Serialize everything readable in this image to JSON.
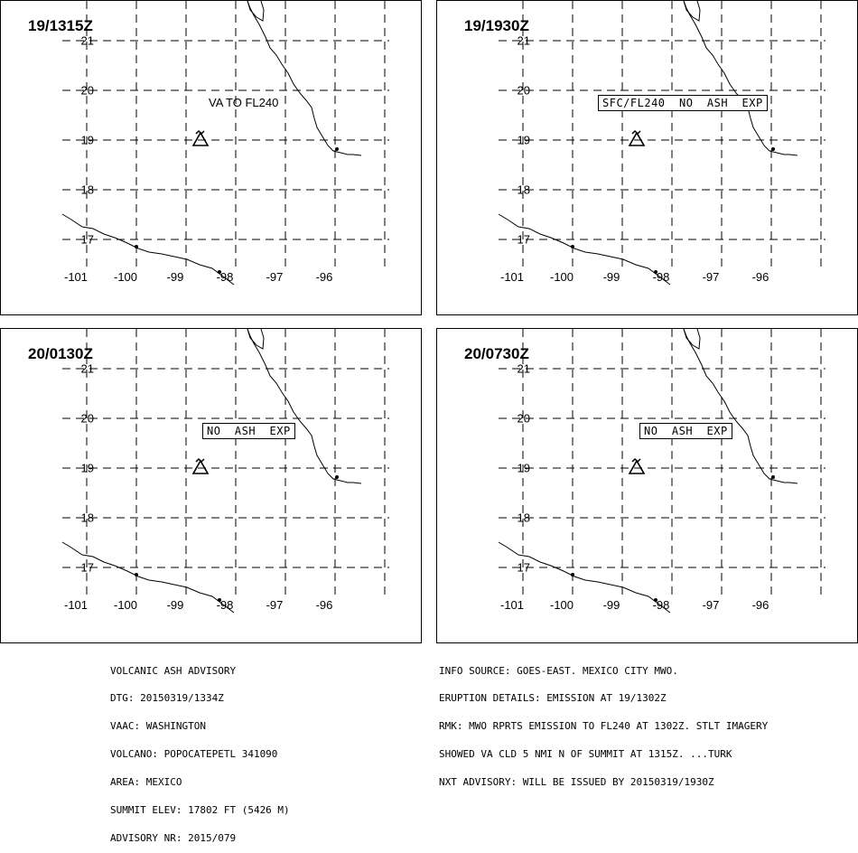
{
  "grid": {
    "lat_labels": [
      "21",
      "20",
      "19",
      "18",
      "17"
    ],
    "lon_labels": [
      "-101",
      "-100",
      "-99",
      "-98",
      "-97",
      "-96"
    ]
  },
  "volcano_icon": "volcano-triangle-icon",
  "panels": [
    {
      "time": "19/1315Z",
      "ash_text": "VA TO FL240",
      "ash_boxed": false
    },
    {
      "time": "19/1930Z",
      "ash_text": "SFC/FL240  NO  ASH  EXP",
      "ash_boxed": true
    },
    {
      "time": "20/0130Z",
      "ash_text": "NO  ASH  EXP",
      "ash_boxed": true
    },
    {
      "time": "20/0730Z",
      "ash_text": "NO  ASH  EXP",
      "ash_boxed": true
    }
  ],
  "advisory": {
    "left": [
      "VOLCANIC ASH ADVISORY",
      "DTG: 20150319/1334Z",
      "VAAC: WASHINGTON",
      "VOLCANO: POPOCATEPETL 341090",
      "AREA: MEXICO",
      "SUMMIT ELEV: 17802 FT (5426 M)",
      "ADVISORY NR: 2015/079"
    ],
    "right": [
      "INFO SOURCE: GOES-EAST. MEXICO CITY MWO.",
      "ERUPTION DETAILS: EMISSION AT 19/1302Z",
      "RMK: MWO RPRTS EMISSION TO FL240 AT 1302Z. STLT IMAGERY",
      "SHOWED VA CLD 5 NMI N OF SUMMIT AT 1315Z. ...TURK",
      "NXT ADVISORY: WILL BE ISSUED BY 20150319/1930Z"
    ]
  }
}
